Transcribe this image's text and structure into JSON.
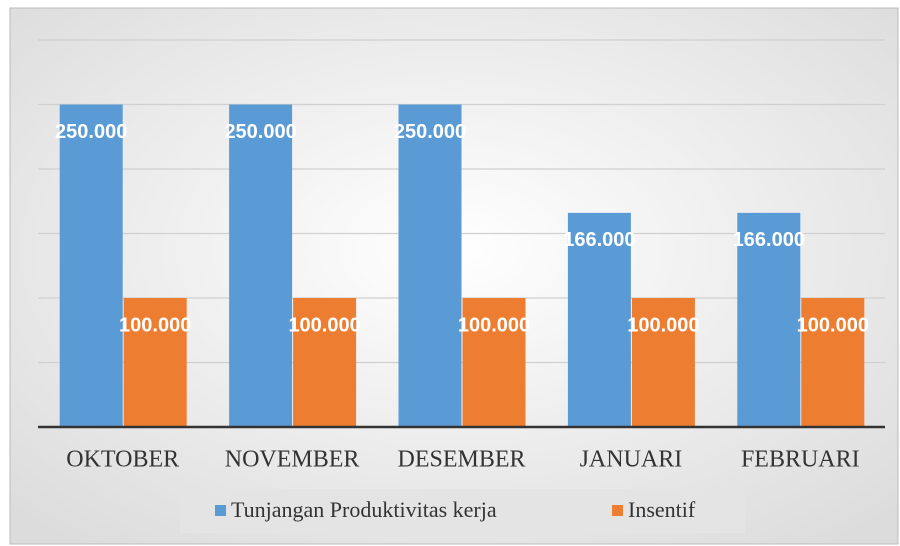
{
  "chart_data": {
    "type": "bar",
    "categories": [
      "OKTOBER",
      "NOVEMBER",
      "DESEMBER",
      "JANUARI",
      "FEBRUARI"
    ],
    "series": [
      {
        "name": "Tunjangan Produktivitas kerja",
        "color": "#5b9bd5",
        "values": [
          250000,
          250000,
          250000,
          166000,
          166000
        ],
        "value_labels": [
          "250.000",
          "250.000",
          "250.000",
          "166.000",
          "166.000"
        ]
      },
      {
        "name": "Insentif",
        "color": "#ed7d31",
        "values": [
          100000,
          100000,
          100000,
          100000,
          100000
        ],
        "value_labels": [
          "100.000",
          "100.000",
          "100.000",
          "100.000",
          "100.000"
        ]
      }
    ],
    "ylim": [
      0,
      300000
    ],
    "yticks": [
      0,
      50000,
      100000,
      150000,
      200000,
      250000,
      300000
    ],
    "grid": true,
    "legend": "bottom"
  }
}
